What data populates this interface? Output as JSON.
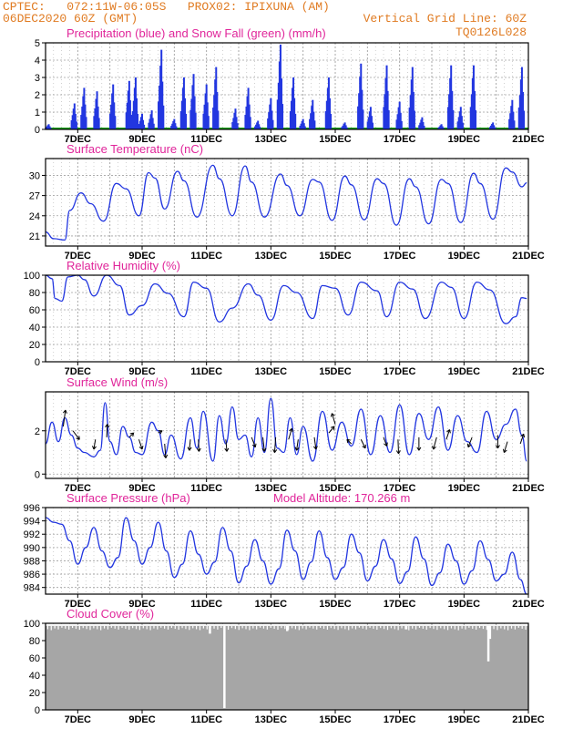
{
  "header": {
    "line1_left": "CPTEC:   072:11W-06:05S   PROX02: IPIXUNA (AM)",
    "line2_left": "06DEC2020 60Z (GMT)",
    "line2_right": "Vertical Grid Line: 60Z",
    "line3_right": "TQ0126L028"
  },
  "colors": {
    "header_text": "#e07b22",
    "panel_title": "#e0259a",
    "data_line": "#2236e0",
    "snow": "#1aa31a",
    "cloud": "#a6a6a6",
    "grid": "#a0a0a0"
  },
  "x_ticks": [
    "7DEC",
    "9DEC",
    "11DEC",
    "13DEC",
    "15DEC",
    "17DEC",
    "19DEC",
    "21DEC"
  ],
  "chart_data": [
    {
      "id": "precip",
      "type": "bar",
      "title": "Precipitation (blue) and Snow Fall (green) (mm/h)",
      "ylim": [
        0,
        5
      ],
      "y_ticks": [
        "0",
        "1",
        "2",
        "3",
        "4",
        "5"
      ],
      "peaks_x_days": [
        6.1,
        6.9,
        7.2,
        7.6,
        8.1,
        8.6,
        8.8,
        9.0,
        9.3,
        9.6,
        10.0,
        10.3,
        10.6,
        11.0,
        11.3,
        11.9,
        12.3,
        12.6,
        13.0,
        13.3,
        13.7,
        14.0,
        14.3,
        14.8,
        15.3,
        15.8,
        16.1,
        16.6,
        17.0,
        17.4,
        17.7,
        18.3,
        18.6,
        18.9,
        19.3,
        19.9,
        20.5,
        20.8
      ],
      "peaks_mm_h": [
        0.3,
        1.5,
        2.4,
        2.2,
        2.6,
        2.8,
        3.0,
        0.9,
        1.1,
        4.6,
        0.6,
        3.0,
        3.2,
        2.6,
        3.6,
        1.2,
        2.4,
        0.5,
        1.8,
        4.9,
        3.0,
        0.6,
        1.7,
        3.0,
        0.4,
        3.8,
        1.3,
        3.7,
        1.6,
        3.6,
        0.7,
        0.3,
        3.7,
        1.3,
        3.7,
        0.4,
        1.7,
        3.6
      ],
      "snow_mm_h": 0.05
    },
    {
      "id": "temperature",
      "type": "line",
      "title": "Surface Temperature (nC)",
      "ylim": [
        19.5,
        32.5
      ],
      "y_ticks": [
        "21",
        "24",
        "27",
        "30"
      ],
      "y_tick_values": [
        21,
        24,
        27,
        30
      ],
      "x_days": [
        6.0,
        6.25,
        6.6,
        6.75,
        7.1,
        7.4,
        7.8,
        8.2,
        8.5,
        8.9,
        9.2,
        9.4,
        9.7,
        10.1,
        10.3,
        10.7,
        11.2,
        11.4,
        11.8,
        12.2,
        12.4,
        12.8,
        13.3,
        13.5,
        13.9,
        14.3,
        14.5,
        14.9,
        15.3,
        15.5,
        15.9,
        16.3,
        16.5,
        16.9,
        17.3,
        17.5,
        17.9,
        18.3,
        18.5,
        18.9,
        19.3,
        19.5,
        19.9,
        20.3,
        20.5,
        20.8,
        20.95
      ],
      "values": [
        21.6,
        20.6,
        20.4,
        24.8,
        27.4,
        25.8,
        23.2,
        28.8,
        28.0,
        24.0,
        30.4,
        29.6,
        25.0,
        30.6,
        29.2,
        23.8,
        31.5,
        29.5,
        24.0,
        31.4,
        29.0,
        23.8,
        30.2,
        28.5,
        24.0,
        29.4,
        29.0,
        23.3,
        29.9,
        28.6,
        23.4,
        29.5,
        28.8,
        22.6,
        29.5,
        28.3,
        22.8,
        29.4,
        28.8,
        23.0,
        30.3,
        28.8,
        23.5,
        31.1,
        30.5,
        28.3,
        28.9
      ]
    },
    {
      "id": "humidity",
      "type": "line",
      "title": "Relative Humidity (%)",
      "ylim": [
        0,
        100
      ],
      "y_ticks": [
        "0",
        "20",
        "40",
        "60",
        "80",
        "100"
      ],
      "y_tick_values": [
        0,
        20,
        40,
        60,
        80,
        100
      ],
      "x_days": [
        6.0,
        6.2,
        6.3,
        6.5,
        6.7,
        7.0,
        7.2,
        7.5,
        7.9,
        8.3,
        8.6,
        9.0,
        9.4,
        9.8,
        10.3,
        10.6,
        11.0,
        11.4,
        11.8,
        12.3,
        12.6,
        13.0,
        13.4,
        13.8,
        14.3,
        14.6,
        15.0,
        15.4,
        15.8,
        16.3,
        16.6,
        17.0,
        17.4,
        17.8,
        18.3,
        18.6,
        19.0,
        19.4,
        19.8,
        20.3,
        20.6,
        20.8,
        20.95
      ],
      "values": [
        100,
        96,
        73,
        70,
        98,
        100,
        95,
        76,
        100,
        88,
        54,
        65,
        90,
        79,
        52,
        92,
        85,
        46,
        62,
        90,
        77,
        48,
        88,
        80,
        50,
        88,
        85,
        54,
        92,
        82,
        52,
        92,
        84,
        50,
        92,
        86,
        50,
        92,
        83,
        44,
        52,
        74,
        73
      ]
    },
    {
      "id": "wind",
      "type": "line",
      "title": "Surface Wind (m/s)",
      "ylim": [
        -0.2,
        3.8
      ],
      "y_ticks": [
        "0",
        "2"
      ],
      "y_tick_values": [
        0,
        2
      ],
      "x_days": [
        6.0,
        6.2,
        6.4,
        6.6,
        6.8,
        7.0,
        7.2,
        7.5,
        7.7,
        7.85,
        8.0,
        8.2,
        8.4,
        8.6,
        8.8,
        9.0,
        9.3,
        9.5,
        9.7,
        9.9,
        10.2,
        10.5,
        10.7,
        10.9,
        11.2,
        11.4,
        11.6,
        11.8,
        12.0,
        12.2,
        12.4,
        12.6,
        12.8,
        13.0,
        13.2,
        13.4,
        13.6,
        13.8,
        14.0,
        14.3,
        14.6,
        14.9,
        15.2,
        15.5,
        15.8,
        16.1,
        16.4,
        16.7,
        17.0,
        17.3,
        17.6,
        17.9,
        18.2,
        18.5,
        18.8,
        19.1,
        19.4,
        19.7,
        20.0,
        20.3,
        20.6,
        20.8,
        20.95
      ],
      "values": [
        1.4,
        2.4,
        1.5,
        2.6,
        1.8,
        1.2,
        1.0,
        0.8,
        1.1,
        3.3,
        1.5,
        0.9,
        2.2,
        1.7,
        1.0,
        0.9,
        2.4,
        2.0,
        0.9,
        1.8,
        0.7,
        2.6,
        1.2,
        2.9,
        0.6,
        2.7,
        1.4,
        3.1,
        1.6,
        1.8,
        0.8,
        2.6,
        1.0,
        3.5,
        1.2,
        1.0,
        2.6,
        0.9,
        2.2,
        0.6,
        2.9,
        1.1,
        2.4,
        1.3,
        3.0,
        0.9,
        2.7,
        1.0,
        3.2,
        0.9,
        2.8,
        1.6,
        3.1,
        1.1,
        2.7,
        1.5,
        1.0,
        2.9,
        1.6,
        2.3,
        3.0,
        1.8,
        0.6
      ],
      "vectors": [
        {
          "x": 6.55,
          "y": 2.2,
          "dx": 0.2,
          "dy": 1.5
        },
        {
          "x": 6.85,
          "y": 2.0,
          "dx": 0.6,
          "dy": -0.8
        },
        {
          "x": 7.55,
          "y": 1.6,
          "dx": -0.15,
          "dy": -0.9
        },
        {
          "x": 7.9,
          "y": 1.7,
          "dx": 0.05,
          "dy": 1.2
        },
        {
          "x": 8.6,
          "y": 1.7,
          "dx": 0.4,
          "dy": 0.4
        },
        {
          "x": 8.9,
          "y": 1.6,
          "dx": 0.3,
          "dy": -0.9
        },
        {
          "x": 9.5,
          "y": 1.9,
          "dx": 0.35,
          "dy": 0.2
        },
        {
          "x": 9.7,
          "y": 1.4,
          "dx": 0.1,
          "dy": -1.3
        },
        {
          "x": 10.5,
          "y": 1.6,
          "dx": -0.1,
          "dy": -1.0
        },
        {
          "x": 10.75,
          "y": 1.6,
          "dx": 0.05,
          "dy": -1.1
        },
        {
          "x": 11.6,
          "y": 1.6,
          "dx": 0.1,
          "dy": -1.1
        },
        {
          "x": 12.4,
          "y": 1.7,
          "dx": 0.35,
          "dy": -0.9
        },
        {
          "x": 12.75,
          "y": 1.7,
          "dx": 0.15,
          "dy": -1.3
        },
        {
          "x": 13.15,
          "y": 1.7,
          "dx": -0.1,
          "dy": -1.4
        },
        {
          "x": 13.55,
          "y": 1.6,
          "dx": 0.3,
          "dy": 1.0
        },
        {
          "x": 13.85,
          "y": 1.6,
          "dx": -0.15,
          "dy": -1.0
        },
        {
          "x": 14.35,
          "y": 1.7,
          "dx": 0.15,
          "dy": -1.1
        },
        {
          "x": 14.8,
          "y": 1.9,
          "dx": 0.5,
          "dy": 0.6
        },
        {
          "x": 15.0,
          "y": 2.3,
          "dx": -0.3,
          "dy": 1.0
        },
        {
          "x": 15.5,
          "y": 1.4,
          "dx": -0.4,
          "dy": 0.4
        },
        {
          "x": 15.8,
          "y": 1.6,
          "dx": 0.4,
          "dy": -0.8
        },
        {
          "x": 16.5,
          "y": 1.7,
          "dx": 0.3,
          "dy": -0.8
        },
        {
          "x": 16.95,
          "y": 1.6,
          "dx": 0.05,
          "dy": -1.3
        },
        {
          "x": 17.6,
          "y": 1.7,
          "dx": 0.0,
          "dy": -1.2
        },
        {
          "x": 18.15,
          "y": 1.7,
          "dx": -0.3,
          "dy": -1.1
        },
        {
          "x": 18.45,
          "y": 1.6,
          "dx": 0.3,
          "dy": 0.9
        },
        {
          "x": 19.25,
          "y": 1.7,
          "dx": -0.35,
          "dy": -0.9
        },
        {
          "x": 20.05,
          "y": 1.8,
          "dx": 0.0,
          "dy": -1.2
        },
        {
          "x": 20.35,
          "y": 1.5,
          "dx": -0.3,
          "dy": -1.0
        },
        {
          "x": 20.75,
          "y": 1.4,
          "dx": 0.3,
          "dy": 0.9
        }
      ]
    },
    {
      "id": "pressure",
      "type": "line",
      "title": "Surface Pressure (hPa)",
      "subtitle": "Model Altitude: 170.266 m",
      "ylim": [
        983,
        996
      ],
      "y_ticks": [
        "984",
        "986",
        "988",
        "990",
        "992",
        "994",
        "996"
      ],
      "y_tick_values": [
        984,
        986,
        988,
        990,
        992,
        994,
        996
      ],
      "x_days": [
        6.0,
        6.25,
        6.5,
        6.75,
        7.0,
        7.25,
        7.5,
        7.75,
        8.0,
        8.25,
        8.5,
        8.75,
        9.0,
        9.25,
        9.5,
        9.75,
        10.0,
        10.25,
        10.5,
        10.75,
        11.0,
        11.25,
        11.5,
        11.75,
        12.0,
        12.25,
        12.5,
        12.75,
        13.0,
        13.25,
        13.5,
        13.75,
        14.0,
        14.25,
        14.5,
        14.75,
        15.0,
        15.25,
        15.5,
        15.75,
        16.0,
        16.25,
        16.5,
        16.75,
        17.0,
        17.25,
        17.5,
        17.75,
        18.0,
        18.25,
        18.5,
        18.75,
        19.0,
        19.25,
        19.5,
        19.75,
        20.0,
        20.25,
        20.5,
        20.75,
        20.95
      ],
      "values": [
        994.5,
        993.8,
        993.5,
        991.0,
        987.5,
        990.0,
        993.0,
        989.5,
        987.0,
        988.5,
        994.5,
        991.0,
        987.5,
        990.0,
        993.8,
        989.5,
        985.5,
        987.5,
        992.5,
        989.0,
        986.0,
        987.8,
        993.0,
        989.5,
        984.7,
        987.2,
        991.2,
        988.0,
        984.5,
        986.8,
        992.6,
        989.5,
        985.2,
        987.8,
        992.5,
        988.5,
        985.2,
        987.0,
        992.0,
        989.2,
        985.0,
        987.2,
        991.2,
        988.3,
        984.6,
        986.4,
        991.6,
        988.3,
        984.3,
        986.2,
        990.5,
        988.0,
        984.5,
        986.5,
        991.0,
        988.2,
        985.0,
        986.0,
        989.3,
        985.2,
        983.0
      ]
    },
    {
      "id": "cloud",
      "type": "area",
      "title": "Cloud Cover (%)",
      "ylim": [
        0,
        100
      ],
      "y_ticks": [
        "0",
        "20",
        "40",
        "60",
        "80",
        "100"
      ],
      "y_tick_values": [
        0,
        20,
        40,
        60,
        80,
        100
      ],
      "base_percent": 97,
      "dips": [
        {
          "x": 11.55,
          "value": 2
        },
        {
          "x": 19.75,
          "value": 56
        },
        {
          "x": 19.8,
          "value": 82
        },
        {
          "x": 11.1,
          "value": 88
        },
        {
          "x": 13.5,
          "value": 91
        },
        {
          "x": 17.2,
          "value": 93
        }
      ]
    }
  ]
}
